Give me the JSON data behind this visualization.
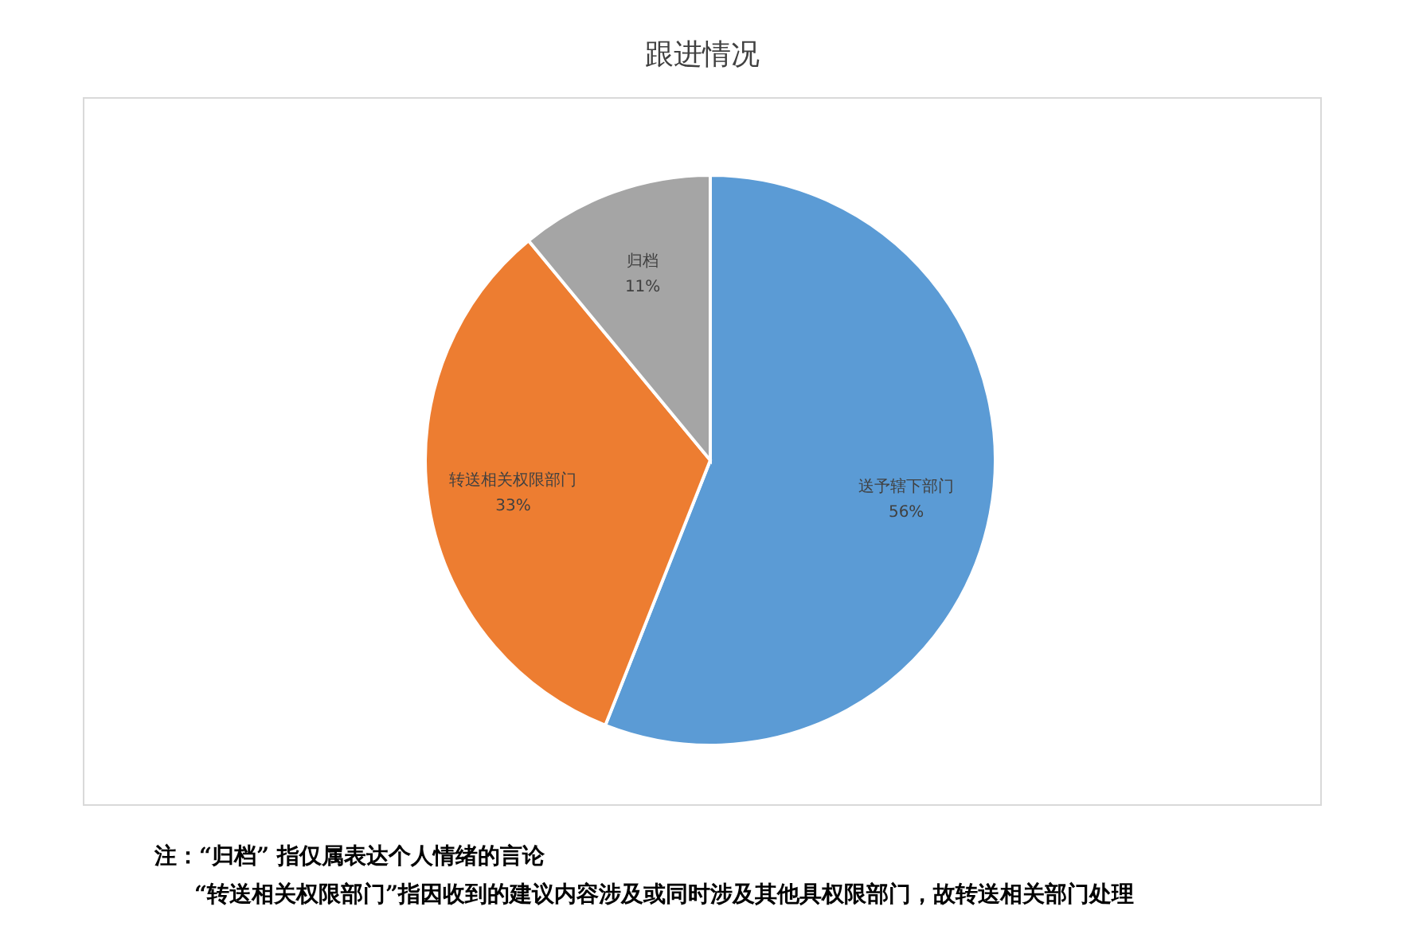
{
  "chart_data": {
    "type": "pie",
    "title": "跟进情况",
    "categories": [
      "送予辖下部门",
      "转送相关权限部门",
      "归档"
    ],
    "values": [
      56,
      33,
      11
    ],
    "colors": [
      "#5b9bd5",
      "#ed7d31",
      "#a5a5a5"
    ],
    "value_labels": [
      "56%",
      "33%",
      "11%"
    ],
    "annotations": [
      "注：“归档” 指仅属表达个人情绪的言论",
      "“转送相关权限部门”指因收到的建议内容涉及或同时涉及其他具权限部门，故转送相关部门处理"
    ]
  }
}
